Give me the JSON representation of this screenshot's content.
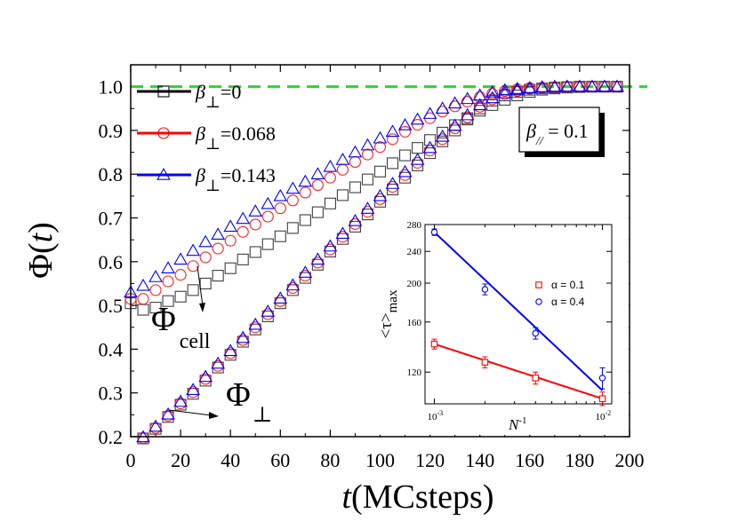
{
  "chart_data": [
    {
      "type": "scatter",
      "xlabel_italic": "t",
      "xlabel_rest": "(MCsteps)",
      "ylabel_main": "Φ(",
      "ylabel_italic": "t",
      "ylabel_close": ")",
      "xlim": [
        0,
        200
      ],
      "ylim": [
        0.2,
        1.05
      ],
      "xticks": [
        0,
        20,
        40,
        60,
        80,
        100,
        120,
        140,
        160,
        180,
        200
      ],
      "yticks": [
        0.2,
        0.3,
        0.4,
        0.5,
        0.6,
        0.7,
        0.8,
        0.9,
        1.0
      ],
      "xtick_labels": [
        "0",
        "20",
        "40",
        "60",
        "80",
        "100",
        "120",
        "140",
        "160",
        "180",
        "200"
      ],
      "ytick_labels": [
        "0.2",
        "0.3",
        "0.4",
        "0.5",
        "0.6",
        "0.7",
        "0.8",
        "0.9",
        "1.0"
      ],
      "reference_line": {
        "y": 1.0,
        "color": "#22dd22",
        "style": "dashed"
      },
      "legend": [
        {
          "symbol": "β",
          "sub": "⊥",
          "value": "=0",
          "color": "#000000",
          "marker": "square"
        },
        {
          "symbol": "β",
          "sub": "⊥",
          "value": "=0.068",
          "color": "#ff0000",
          "marker": "circle"
        },
        {
          "symbol": "β",
          "sub": "⊥",
          "value": "=0.143",
          "color": "#0000ff",
          "marker": "triangle"
        }
      ],
      "box_label": {
        "symbol": "β",
        "sub": "//",
        "value": " = 0.1"
      },
      "annotations": [
        {
          "main": "Φ",
          "sub": "cell"
        },
        {
          "main": "Φ",
          "sub": "⊥"
        }
      ],
      "series": [
        {
          "marker": "square",
          "color": "#404040",
          "cell": {
            "x": [
              0,
              5,
              10,
              15,
              20,
              25,
              30,
              35,
              40,
              45,
              50,
              55,
              60,
              65,
              70,
              75,
              80,
              85,
              90,
              95,
              100,
              105,
              110,
              115,
              120,
              125,
              130,
              135,
              140,
              145,
              150,
              155,
              160,
              165,
              170,
              175,
              180,
              185,
              190,
              195
            ],
            "y": [
              0.505,
              0.49,
              0.495,
              0.51,
              0.52,
              0.535,
              0.55,
              0.568,
              0.585,
              0.605,
              0.622,
              0.64,
              0.658,
              0.677,
              0.695,
              0.713,
              0.733,
              0.752,
              0.77,
              0.788,
              0.806,
              0.825,
              0.843,
              0.86,
              0.878,
              0.895,
              0.912,
              0.928,
              0.945,
              0.958,
              0.97,
              0.98,
              0.988,
              0.993,
              0.996,
              0.998,
              0.999,
              1.0,
              1.0,
              1.0
            ]
          },
          "perp": {
            "x": [
              5,
              10,
              15,
              20,
              25,
              30,
              35,
              40,
              45,
              50,
              55,
              60,
              65,
              70,
              75,
              80,
              85,
              90,
              95,
              100,
              105,
              110,
              115,
              120,
              125,
              130,
              135,
              140,
              145,
              150,
              155,
              160,
              165,
              170,
              175,
              180,
              185,
              190,
              195
            ],
            "y": [
              0.196,
              0.218,
              0.245,
              0.273,
              0.298,
              0.328,
              0.358,
              0.387,
              0.417,
              0.445,
              0.475,
              0.505,
              0.535,
              0.563,
              0.593,
              0.623,
              0.652,
              0.68,
              0.708,
              0.737,
              0.765,
              0.792,
              0.82,
              0.848,
              0.875,
              0.9,
              0.925,
              0.95,
              0.968,
              0.98,
              0.988,
              0.993,
              0.996,
              0.998,
              0.999,
              1.0,
              1.0,
              1.0,
              1.0
            ]
          }
        },
        {
          "marker": "circle",
          "color": "#ff2020",
          "cell": {
            "x": [
              0,
              5,
              10,
              15,
              20,
              25,
              30,
              35,
              40,
              45,
              50,
              55,
              60,
              65,
              70,
              75,
              80,
              85,
              90,
              95,
              100,
              105,
              110,
              115,
              120,
              125,
              130,
              135,
              140,
              145,
              150,
              155,
              160,
              165,
              170,
              175,
              180,
              185,
              190,
              195
            ],
            "y": [
              0.515,
              0.515,
              0.535,
              0.555,
              0.57,
              0.59,
              0.61,
              0.63,
              0.648,
              0.668,
              0.685,
              0.703,
              0.722,
              0.74,
              0.758,
              0.775,
              0.792,
              0.81,
              0.828,
              0.845,
              0.862,
              0.88,
              0.897,
              0.913,
              0.928,
              0.943,
              0.955,
              0.966,
              0.976,
              0.984,
              0.99,
              0.994,
              0.997,
              0.998,
              0.999,
              1.0,
              1.0,
              1.0,
              1.0,
              1.0
            ]
          },
          "perp": {
            "x": [
              5,
              10,
              15,
              20,
              25,
              30,
              35,
              40,
              45,
              50,
              55,
              60,
              65,
              70,
              75,
              80,
              85,
              90,
              95,
              100,
              105,
              110,
              115,
              120,
              125,
              130,
              135,
              140,
              145,
              150,
              155,
              160,
              165,
              170,
              175,
              180,
              185,
              190,
              195
            ],
            "y": [
              0.197,
              0.22,
              0.248,
              0.276,
              0.302,
              0.332,
              0.362,
              0.391,
              0.421,
              0.45,
              0.48,
              0.51,
              0.54,
              0.568,
              0.598,
              0.628,
              0.657,
              0.686,
              0.714,
              0.743,
              0.771,
              0.798,
              0.826,
              0.854,
              0.88,
              0.905,
              0.93,
              0.954,
              0.971,
              0.983,
              0.99,
              0.995,
              0.997,
              0.999,
              1.0,
              1.0,
              1.0,
              1.0,
              1.0
            ]
          }
        },
        {
          "marker": "triangle",
          "color": "#0000ff",
          "cell": {
            "x": [
              0,
              5,
              10,
              15,
              20,
              25,
              30,
              35,
              40,
              45,
              50,
              55,
              60,
              65,
              70,
              75,
              80,
              85,
              90,
              95,
              100,
              105,
              110,
              115,
              120,
              125,
              130,
              135,
              140,
              145,
              150,
              155,
              160,
              165,
              170,
              175,
              180,
              185,
              190,
              195
            ],
            "y": [
              0.53,
              0.545,
              0.565,
              0.585,
              0.605,
              0.625,
              0.645,
              0.662,
              0.68,
              0.698,
              0.715,
              0.732,
              0.75,
              0.767,
              0.783,
              0.8,
              0.817,
              0.833,
              0.85,
              0.866,
              0.882,
              0.897,
              0.912,
              0.925,
              0.938,
              0.95,
              0.962,
              0.972,
              0.98,
              0.987,
              0.992,
              0.995,
              0.997,
              0.999,
              1.0,
              1.0,
              1.0,
              1.0,
              1.0,
              1.0
            ]
          },
          "perp": {
            "x": [
              5,
              10,
              15,
              20,
              25,
              30,
              35,
              40,
              45,
              50,
              55,
              60,
              65,
              70,
              75,
              80,
              85,
              90,
              95,
              100,
              105,
              110,
              115,
              120,
              125,
              130,
              135,
              140,
              145,
              150,
              155,
              160,
              165,
              170,
              175,
              180,
              185,
              190,
              195
            ],
            "y": [
              0.199,
              0.223,
              0.251,
              0.28,
              0.307,
              0.337,
              0.367,
              0.396,
              0.426,
              0.456,
              0.486,
              0.516,
              0.546,
              0.575,
              0.605,
              0.635,
              0.664,
              0.693,
              0.721,
              0.75,
              0.778,
              0.805,
              0.833,
              0.86,
              0.886,
              0.911,
              0.935,
              0.958,
              0.974,
              0.985,
              0.992,
              0.996,
              0.998,
              0.999,
              1.0,
              1.0,
              1.0,
              1.0,
              1.0
            ]
          }
        }
      ]
    },
    {
      "type": "scatter",
      "inset": true,
      "xlabel_italic": "N",
      "xlabel_sup": "-1",
      "ylabel_main": "<τ>",
      "ylabel_sub": "max",
      "x_scale": "log",
      "y_scale": "log",
      "xlim": [
        0.001,
        0.01
      ],
      "ylim": [
        100,
        280
      ],
      "xticks": [
        0.001,
        0.01
      ],
      "xtick_labels": [
        {
          "base": "10",
          "exp": "-3"
        },
        {
          "base": "10",
          "exp": "-2"
        }
      ],
      "yticks": [
        120,
        160,
        200,
        240,
        280
      ],
      "ytick_labels": [
        "120",
        "160",
        "200",
        "240",
        "280"
      ],
      "series": [
        {
          "name": "α = 0.1",
          "color": "#ff0000",
          "marker": "square",
          "x": [
            0.001,
            0.002,
            0.004,
            0.01
          ],
          "y": [
            141,
            127,
            116,
            103
          ],
          "yerr": [
            4,
            4,
            4,
            4
          ],
          "fit": {
            "x": [
              0.001,
              0.01
            ],
            "y": [
              141,
              103
            ]
          }
        },
        {
          "name": "α = 0.4",
          "color": "#0000ff",
          "marker": "circle",
          "x": [
            0.001,
            0.002,
            0.004,
            0.01
          ],
          "y": [
            268,
            193,
            150,
            116
          ],
          "yerr": [
            5,
            6,
            5,
            7
          ],
          "fit": {
            "x": [
              0.001,
              0.01
            ],
            "y": [
              268,
              108
            ]
          }
        }
      ]
    }
  ]
}
